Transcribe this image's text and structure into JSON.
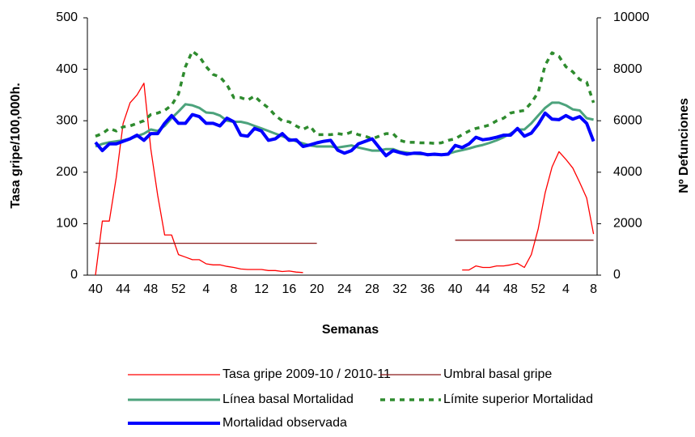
{
  "chart_data": {
    "type": "line",
    "x_label": "Semanas",
    "y_label": "Tasa gripe/100,000h.",
    "y2_label": "Nº Defunciones",
    "categories": [
      "40",
      null,
      null,
      null,
      "44",
      null,
      null,
      null,
      "48",
      null,
      null,
      null,
      "52",
      null,
      null,
      null,
      "4",
      null,
      null,
      null,
      "8",
      null,
      null,
      null,
      "12",
      null,
      null,
      null,
      "16",
      null,
      null,
      null,
      "20",
      null,
      null,
      null,
      "24",
      null,
      null,
      null,
      "28",
      null,
      null,
      null,
      "32",
      null,
      null,
      null,
      "36",
      null,
      null,
      null,
      "40",
      null,
      null,
      null,
      "44",
      null,
      null,
      null,
      "48",
      null,
      null,
      null,
      "52",
      null,
      null,
      null,
      "4",
      null,
      null,
      null,
      "8"
    ],
    "ylim": [
      0,
      500
    ],
    "yticks": [
      0,
      100,
      200,
      300,
      400,
      500
    ],
    "y2lim": [
      0,
      10000
    ],
    "y2ticks": [
      0,
      2000,
      4000,
      6000,
      8000,
      10000
    ],
    "grid": false,
    "legend": "bottom",
    "series": [
      {
        "name": "Tasa gripe 2009-10 / 2010-11",
        "color": "#ff0000",
        "style": "thin",
        "axis": "y",
        "values": [
          0,
          105,
          105,
          190,
          295,
          335,
          350,
          373,
          245,
          155,
          78,
          78,
          40,
          35,
          30,
          30,
          22,
          20,
          20,
          17,
          15,
          12,
          11,
          11,
          11,
          9,
          9,
          7,
          8,
          6,
          5,
          null,
          null,
          null,
          null,
          null,
          null,
          null,
          null,
          null,
          null,
          null,
          null,
          null,
          null,
          null,
          null,
          null,
          null,
          null,
          null,
          null,
          null,
          10,
          10,
          18,
          15,
          15,
          18,
          18,
          20,
          23,
          15,
          40,
          90,
          160,
          210,
          240,
          225,
          208,
          180,
          150,
          80
        ]
      },
      {
        "name": "Umbral basal gripe",
        "color": "#8b1a1a",
        "style": "thin",
        "axis": "y",
        "values": [
          62,
          62,
          62,
          62,
          62,
          62,
          62,
          62,
          62,
          62,
          62,
          62,
          62,
          62,
          62,
          62,
          62,
          62,
          62,
          62,
          62,
          62,
          62,
          62,
          62,
          62,
          62,
          62,
          62,
          62,
          62,
          62,
          62,
          null,
          null,
          null,
          null,
          null,
          null,
          null,
          null,
          null,
          null,
          null,
          null,
          null,
          null,
          null,
          null,
          null,
          null,
          null,
          68,
          68,
          68,
          68,
          68,
          68,
          68,
          68,
          68,
          68,
          68,
          68,
          68,
          68,
          68,
          68,
          68,
          68,
          68,
          68,
          68
        ]
      },
      {
        "name": "Línea basal Mortalidad",
        "color": "#4ca37c",
        "style": "medium",
        "axis": "y2",
        "values": [
          5000,
          5100,
          5160,
          5200,
          5240,
          5300,
          5400,
          5500,
          5660,
          5600,
          5800,
          6100,
          6360,
          6640,
          6600,
          6500,
          6320,
          6300,
          6200,
          6000,
          5960,
          5960,
          5900,
          5800,
          5700,
          5600,
          5500,
          5400,
          5300,
          5200,
          5120,
          5040,
          5000,
          5000,
          5000,
          4960,
          5000,
          5040,
          4960,
          4900,
          4840,
          4840,
          4900,
          4900,
          4800,
          4760,
          4720,
          4700,
          4700,
          4680,
          4680,
          4720,
          4800,
          4860,
          4920,
          5000,
          5060,
          5140,
          5240,
          5360,
          5500,
          5660,
          5660,
          5900,
          6200,
          6500,
          6700,
          6700,
          6600,
          6440,
          6400,
          6100,
          6040
        ]
      },
      {
        "name": "Límite superior Mortalidad",
        "color": "#2e8b2e",
        "style": "dashed",
        "axis": "y2",
        "values": [
          5400,
          5500,
          5700,
          5600,
          5760,
          5800,
          5900,
          6000,
          6240,
          6300,
          6400,
          6600,
          7040,
          8100,
          8700,
          8500,
          8100,
          7800,
          7700,
          7400,
          6900,
          6900,
          6800,
          6960,
          6700,
          6500,
          6200,
          6000,
          5960,
          5800,
          5660,
          5800,
          5460,
          5460,
          5460,
          5500,
          5460,
          5560,
          5460,
          5400,
          5300,
          5400,
          5500,
          5500,
          5240,
          5160,
          5160,
          5140,
          5140,
          5120,
          5140,
          5240,
          5300,
          5460,
          5600,
          5700,
          5760,
          5840,
          6000,
          6100,
          6300,
          6360,
          6400,
          6700,
          7100,
          8160,
          8640,
          8500,
          8100,
          7900,
          7600,
          7500,
          6700
        ]
      },
      {
        "name": "Mortalidad observada",
        "color": "#0000ff",
        "style": "thick",
        "axis": "y2",
        "values": [
          5160,
          4840,
          5100,
          5100,
          5200,
          5300,
          5440,
          5240,
          5500,
          5500,
          5900,
          6200,
          5900,
          5900,
          6240,
          6160,
          5900,
          5900,
          5800,
          6100,
          5960,
          5440,
          5400,
          5700,
          5600,
          5240,
          5300,
          5500,
          5240,
          5260,
          5000,
          5060,
          5140,
          5200,
          5240,
          4860,
          4740,
          4840,
          5100,
          5200,
          5300,
          4960,
          4640,
          4840,
          4760,
          4700,
          4740,
          4740,
          4680,
          4700,
          4680,
          4700,
          5040,
          4960,
          5100,
          5360,
          5260,
          5300,
          5360,
          5440,
          5440,
          5700,
          5400,
          5520,
          5860,
          6300,
          6060,
          6040,
          6200,
          6060,
          6160,
          5900,
          5200
        ]
      }
    ]
  }
}
